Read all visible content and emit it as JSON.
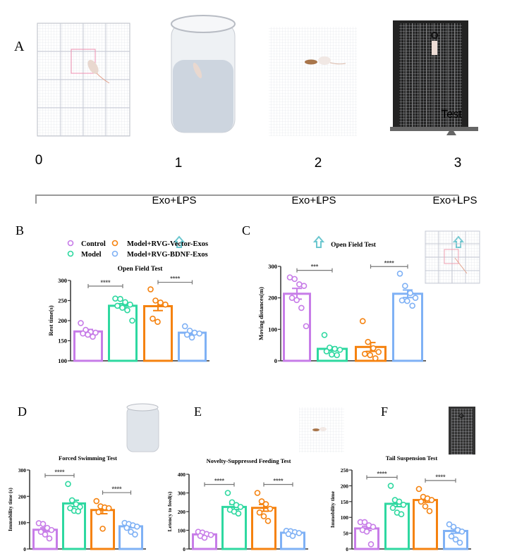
{
  "panel_labels": {
    "a": "A",
    "b": "B",
    "c": "C",
    "d": "D",
    "e": "E",
    "f": "F"
  },
  "timeline": {
    "days": [
      "0",
      "1",
      "2",
      "3"
    ],
    "test_label": "Test",
    "treatment_label": "Exo+LPS",
    "treatment_days": [
      1,
      2,
      3
    ],
    "arrow_color": "#6cc7cf",
    "marker_color": "#666666"
  },
  "illustrations": [
    "open-field-arena",
    "forced-swimming-cylinder",
    "novelty-feeding-arena",
    "tail-suspension-box"
  ],
  "legend": {
    "items": [
      {
        "label": "Control",
        "color": "#c77ce8"
      },
      {
        "label": "Model+RVG-Vector-Exos",
        "color": "#f5820f"
      },
      {
        "label": "Model",
        "color": "#2ed8a0"
      },
      {
        "label": "Model+RVG-BDNF-Exos",
        "color": "#7fb1f5"
      }
    ]
  },
  "chart_data": [
    {
      "panel": "B",
      "type": "bar",
      "title": "Open Field Test",
      "ylabel": "Rest time(s)",
      "ylim": [
        100,
        300
      ],
      "yticks": [
        100,
        150,
        200,
        250,
        300
      ],
      "categories": [
        "Control",
        "Model",
        "Model+RVG-Vector-Exos",
        "Model+RVG-BDNF-Exos"
      ],
      "values": [
        173,
        237,
        236,
        170
      ],
      "sem": [
        5,
        5,
        11,
        4
      ],
      "points": [
        [
          194,
          177,
          172,
          170,
          168,
          165,
          160
        ],
        [
          255,
          254,
          246,
          240,
          237,
          232,
          226,
          200
        ],
        [
          278,
          250,
          245,
          240,
          205,
          197
        ],
        [
          186,
          175,
          170,
          168,
          165,
          158
        ]
      ],
      "significance": [
        {
          "groups": [
            1,
            2
          ],
          "label": "****"
        },
        {
          "groups": [
            3,
            4
          ],
          "label": "****"
        }
      ]
    },
    {
      "panel": "C",
      "type": "bar",
      "title": "Open Field Test",
      "ylabel": "Moving distances(m)",
      "ylim": [
        0,
        300
      ],
      "yticks": [
        0,
        100,
        200,
        300
      ],
      "categories": [
        "Control",
        "Model",
        "Model+RVG-Vector-Exos",
        "Model+RVG-BDNF-Exos"
      ],
      "values": [
        213,
        38,
        44,
        213
      ],
      "sem": [
        17,
        6,
        14,
        12
      ],
      "points": [
        [
          265,
          260,
          243,
          238,
          200,
          193,
          168,
          110
        ],
        [
          82,
          42,
          38,
          35,
          30,
          20,
          18
        ],
        [
          126,
          60,
          40,
          28,
          22,
          18,
          8
        ],
        [
          277,
          238,
          215,
          200,
          192,
          190,
          175
        ]
      ],
      "significance": [
        {
          "groups": [
            1,
            2
          ],
          "label": "***"
        },
        {
          "groups": [
            3,
            4
          ],
          "label": "****"
        }
      ]
    },
    {
      "panel": "D",
      "type": "bar",
      "title": "Forced Swimming Test",
      "ylabel": "Immobility time (s)",
      "ylim": [
        0,
        300
      ],
      "yticks": [
        0,
        100,
        200,
        300
      ],
      "categories": [
        "Control",
        "Model",
        "Model+RVG-Vector-Exos",
        "Model+RVG-BDNF-Exos"
      ],
      "values": [
        73,
        173,
        148,
        86
      ],
      "sem": [
        7,
        12,
        14,
        5
      ],
      "points": [
        [
          98,
          95,
          80,
          72,
          65,
          55,
          40
        ],
        [
          247,
          185,
          170,
          160,
          155,
          145,
          143
        ],
        [
          182,
          162,
          158,
          155,
          140,
          77
        ],
        [
          99,
          95,
          90,
          85,
          80,
          65,
          55
        ]
      ],
      "significance": [
        {
          "groups": [
            1,
            2
          ],
          "label": "****"
        },
        {
          "groups": [
            3,
            4
          ],
          "label": "****"
        }
      ]
    },
    {
      "panel": "E",
      "type": "bar",
      "title": "Novelty-Suppressed Feeding Test",
      "ylabel": "Letency to feed(s)",
      "ylim": [
        0,
        400
      ],
      "yticks": [
        0,
        100,
        200,
        300,
        400
      ],
      "categories": [
        "Control",
        "Model",
        "Model+RVG-Vector-Exos",
        "Model+RVG-BDNF-Exos"
      ],
      "values": [
        78,
        225,
        220,
        87
      ],
      "sem": [
        6,
        14,
        18,
        5
      ],
      "points": [
        [
          92,
          88,
          80,
          75,
          70,
          60
        ],
        [
          300,
          250,
          235,
          225,
          210,
          200,
          190
        ],
        [
          300,
          255,
          240,
          215,
          195,
          175,
          150
        ],
        [
          97,
          95,
          90,
          85,
          80,
          70
        ]
      ],
      "significance": [
        {
          "groups": [
            1,
            2
          ],
          "label": "****"
        },
        {
          "groups": [
            3,
            4
          ],
          "label": "****"
        }
      ]
    },
    {
      "panel": "F",
      "type": "bar",
      "title": "Tail Suspension Test",
      "ylabel": "Immobility time",
      "ylim": [
        0,
        250
      ],
      "yticks": [
        0,
        50,
        100,
        150,
        200,
        250
      ],
      "categories": [
        "Control",
        "Model",
        "Model+RVG-Vector-Exos",
        "Model+RVG-BDNF-Exos"
      ],
      "values": [
        65,
        143,
        155,
        57
      ],
      "sem": [
        7,
        9,
        7,
        7
      ],
      "points": [
        [
          85,
          85,
          75,
          70,
          60,
          55,
          15
        ],
        [
          200,
          155,
          150,
          140,
          130,
          115,
          110
        ],
        [
          190,
          165,
          160,
          155,
          150,
          135,
          120
        ],
        [
          78,
          70,
          60,
          55,
          40,
          30,
          20
        ]
      ],
      "significance": [
        {
          "groups": [
            1,
            2
          ],
          "label": "****"
        },
        {
          "groups": [
            3,
            4
          ],
          "label": "****"
        }
      ]
    }
  ]
}
